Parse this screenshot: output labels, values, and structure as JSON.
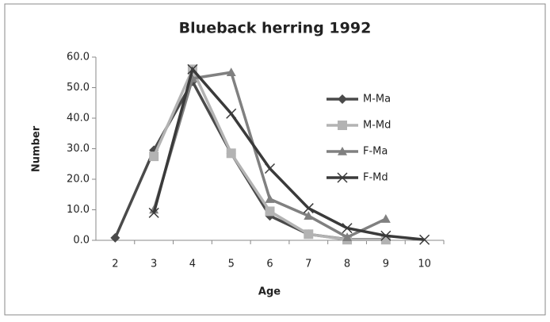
{
  "chart_data": {
    "type": "line",
    "title": "Blueback herring 1992",
    "x_label": "Age",
    "y_label": "Number",
    "categories": [
      "2",
      "3",
      "4",
      "5",
      "6",
      "7",
      "8",
      "9",
      "10"
    ],
    "series": [
      {
        "name": "M-Ma",
        "color": "#4a4a4a",
        "marker": "diamond",
        "values": [
          0.8,
          29.5,
          52,
          28.5,
          8,
          2,
          0.3,
          0.3,
          null
        ]
      },
      {
        "name": "M-Md",
        "color": "#b3b3b3",
        "marker": "square",
        "values": [
          null,
          27.5,
          56,
          28.5,
          9.5,
          2,
          0.2,
          0.2,
          null
        ]
      },
      {
        "name": "F-Ma",
        "color": "#808080",
        "marker": "triangle",
        "values": [
          null,
          10,
          53,
          55,
          13.5,
          8,
          1,
          7,
          null
        ]
      },
      {
        "name": "F-Md",
        "color": "#3a3a3a",
        "marker": "x",
        "values": [
          null,
          9,
          56,
          41.5,
          23.5,
          10.5,
          4,
          1.5,
          0.2
        ]
      }
    ],
    "ylim": [
      0,
      60
    ],
    "yticks": [
      {
        "value": 0,
        "label": "0.0"
      },
      {
        "value": 10,
        "label": "10.0"
      },
      {
        "value": 20,
        "label": "20.0"
      },
      {
        "value": 30,
        "label": "30.0"
      },
      {
        "value": 40,
        "label": "40.0"
      },
      {
        "value": 50,
        "label": "50.0"
      },
      {
        "value": 60,
        "label": "60.0"
      }
    ],
    "grid": false,
    "legend": "right"
  }
}
